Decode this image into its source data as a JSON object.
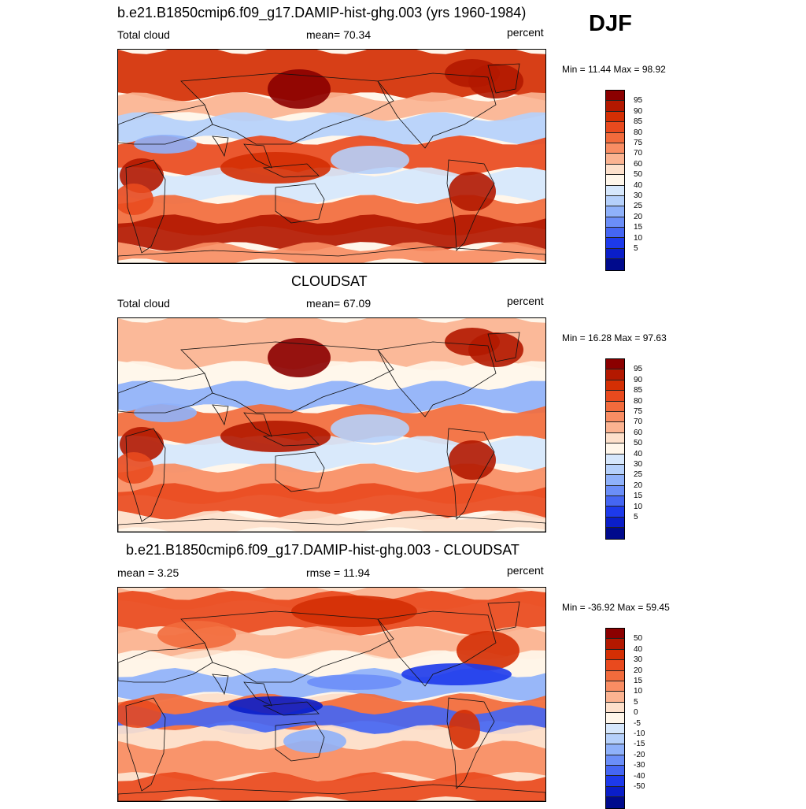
{
  "season": "DJF",
  "panels": [
    {
      "title": "b.e21.B1850cmip6.f09_g17.DAMIP-hist-ghg.003 (yrs 1960-1984)",
      "left_text": "Total cloud",
      "center_text": "mean=  70.34",
      "right_text": "percent",
      "minmax": "Min =  11.44 Max =  98.92",
      "scale": "abs"
    },
    {
      "title": "CLOUDSAT",
      "left_text": "Total cloud",
      "center_text": "mean=  67.09",
      "right_text": "percent",
      "minmax": "Min =  16.28 Max =  97.63",
      "scale": "abs"
    },
    {
      "title": "b.e21.B1850cmip6.f09_g17.DAMIP-hist-ghg.003 - CLOUDSAT",
      "left_text": "mean =    3.25",
      "center_text": "rmse =   11.94",
      "right_text": "percent",
      "minmax": "Min = -36.92 Max =  59.45",
      "scale": "diff"
    }
  ],
  "scales": {
    "abs": {
      "levels": [
        "95",
        "90",
        "85",
        "80",
        "75",
        "70",
        "60",
        "50",
        "40",
        "30",
        "25",
        "20",
        "15",
        "10",
        "5"
      ],
      "colors": [
        "#8b0000",
        "#b31800",
        "#d42f04",
        "#e94a1e",
        "#f26b3c",
        "#f98d63",
        "#fbb391",
        "#fde0cb",
        "#fff6ea",
        "#d6e7fc",
        "#b5d0fb",
        "#8fb1fa",
        "#6b8ef8",
        "#4566f3",
        "#1d3aeb",
        "#0a1ec8",
        "#000a8c"
      ]
    },
    "diff": {
      "levels": [
        "50",
        "40",
        "30",
        "20",
        "15",
        "10",
        "5",
        "0",
        "-5",
        "-10",
        "-15",
        "-20",
        "-30",
        "-40",
        "-50"
      ],
      "colors": [
        "#8b0000",
        "#b31800",
        "#d42f04",
        "#e94a1e",
        "#f26b3c",
        "#f98d63",
        "#fbb391",
        "#fde0cb",
        "#fff6ea",
        "#d6e7fc",
        "#b5d0fb",
        "#8fb1fa",
        "#6b8ef8",
        "#4566f3",
        "#1d3aeb",
        "#0a1ec8",
        "#000a8c"
      ]
    }
  }
}
